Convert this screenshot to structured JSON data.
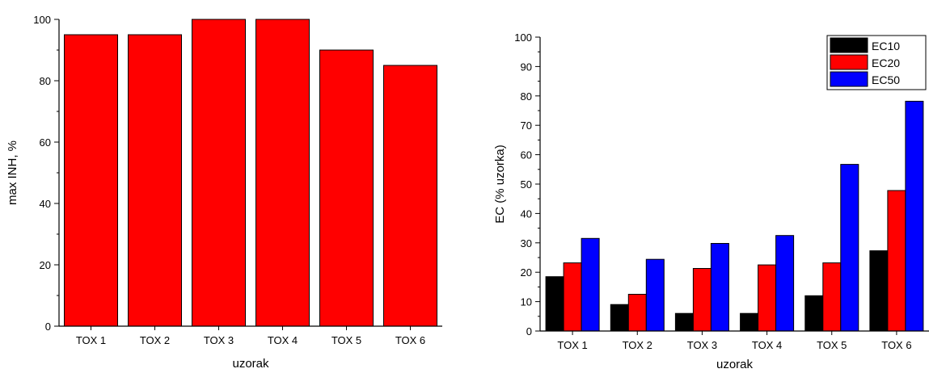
{
  "chart_data": [
    {
      "type": "bar",
      "title": "",
      "xlabel": "uzorak",
      "ylabel": "max INH, %",
      "ylim": [
        0,
        100
      ],
      "yticks": [
        0,
        20,
        40,
        60,
        80,
        100
      ],
      "grid": false,
      "categories": [
        "TOX 1",
        "TOX 2",
        "TOX 3",
        "TOX 4",
        "TOX 5",
        "TOX 6"
      ],
      "series": [
        {
          "values": [
            95,
            95,
            100,
            100,
            90,
            85
          ],
          "color": "#ff0000"
        }
      ]
    },
    {
      "type": "bar",
      "title": "",
      "xlabel": "uzorak",
      "ylabel": "EC (% uzorka)",
      "ylim": [
        0,
        100
      ],
      "yticks": [
        0,
        10,
        20,
        30,
        40,
        50,
        60,
        70,
        80,
        90,
        100
      ],
      "grid": false,
      "legend": "top-right",
      "categories": [
        "TOX 1",
        "TOX 2",
        "TOX 3",
        "TOX 4",
        "TOX 5",
        "TOX 6"
      ],
      "series": [
        {
          "name": "EC10",
          "color": "#000000",
          "values": [
            18.5,
            9,
            6,
            6,
            12,
            27.3
          ]
        },
        {
          "name": "EC20",
          "color": "#ff0000",
          "values": [
            23.2,
            12.5,
            21.3,
            22.5,
            23.2,
            47.8
          ]
        },
        {
          "name": "EC50",
          "color": "#0000ff",
          "values": [
            31.5,
            24.4,
            29.8,
            32.5,
            56.7,
            78.2
          ]
        }
      ]
    }
  ]
}
